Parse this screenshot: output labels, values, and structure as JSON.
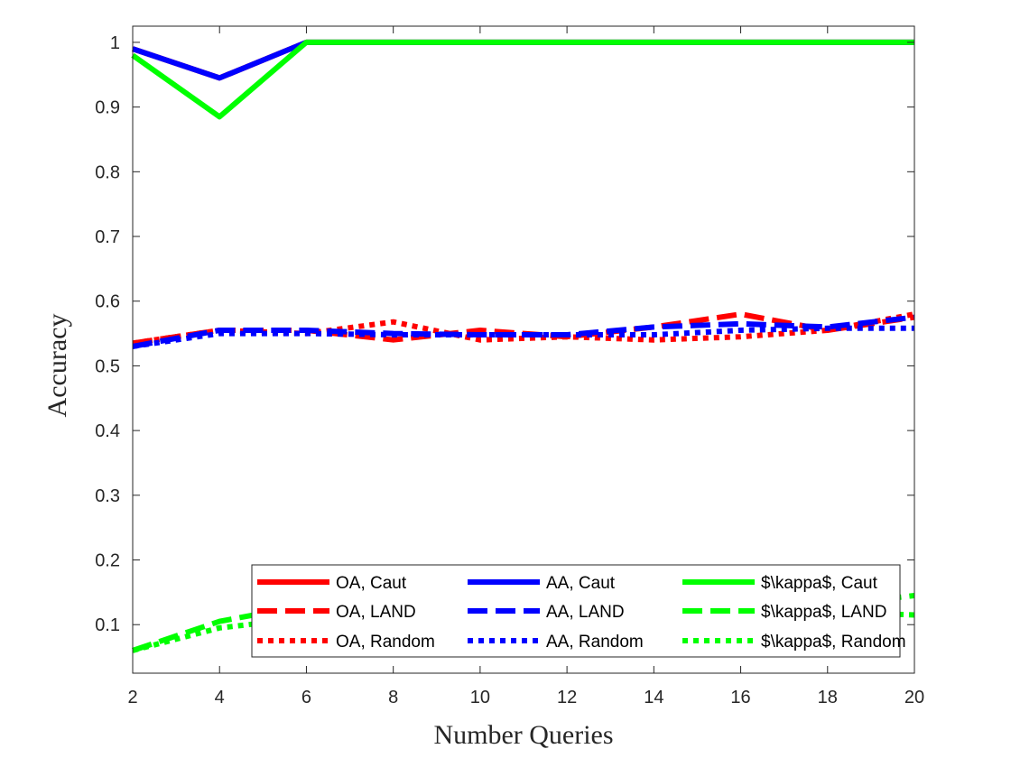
{
  "chart_data": {
    "type": "line",
    "title": "",
    "xlabel": "Number Queries",
    "ylabel": "Accuracy",
    "xlim": [
      2,
      20
    ],
    "ylim": [
      0.025,
      1.025
    ],
    "xticks": [
      2,
      4,
      6,
      8,
      10,
      12,
      14,
      16,
      18,
      20
    ],
    "yticks": [
      0.1,
      0.2,
      0.3,
      0.4,
      0.5,
      0.6,
      0.7,
      0.8,
      0.9,
      1
    ],
    "grid": false,
    "legend_position": "bottom-right",
    "legend_columns": 3,
    "x": [
      2,
      4,
      6,
      8,
      10,
      12,
      14,
      16,
      18,
      20
    ],
    "series": [
      {
        "name": "OA, Caut",
        "color": "#ff0000",
        "style": "solid",
        "values": [
          0.99,
          0.945,
          1,
          1,
          1,
          1,
          1,
          1,
          1,
          1
        ]
      },
      {
        "name": "OA, LAND",
        "color": "#ff0000",
        "style": "dashed",
        "values": [
          0.535,
          0.555,
          0.555,
          0.54,
          0.555,
          0.545,
          0.56,
          0.58,
          0.555,
          0.575
        ]
      },
      {
        "name": "OA, Random",
        "color": "#ff0000",
        "style": "dotted",
        "values": [
          0.535,
          0.555,
          0.55,
          0.568,
          0.54,
          0.545,
          0.54,
          0.545,
          0.555,
          0.58
        ]
      },
      {
        "name": "AA, Caut",
        "color": "#0000ff",
        "style": "solid",
        "values": [
          0.99,
          0.945,
          1,
          1,
          1,
          1,
          1,
          1,
          1,
          1
        ]
      },
      {
        "name": "AA, LAND",
        "color": "#0000ff",
        "style": "dashed",
        "values": [
          0.53,
          0.555,
          0.555,
          0.55,
          0.548,
          0.548,
          0.56,
          0.565,
          0.56,
          0.575
        ]
      },
      {
        "name": "AA, Random",
        "color": "#0000ff",
        "style": "dotted",
        "values": [
          0.53,
          0.55,
          0.55,
          0.548,
          0.548,
          0.548,
          0.548,
          0.555,
          0.558,
          0.558
        ]
      },
      {
        "name": "$\\kappa$, Caut",
        "color": "#00ff00",
        "style": "solid",
        "values": [
          0.98,
          0.885,
          1,
          1,
          1,
          1,
          1,
          1,
          1,
          1
        ]
      },
      {
        "name": "$\\kappa$, LAND",
        "color": "#00ff00",
        "style": "dashed",
        "values": [
          0.06,
          0.105,
          0.13,
          0.125,
          0.125,
          0.125,
          0.13,
          0.13,
          0.13,
          0.145
        ]
      },
      {
        "name": "$\\kappa$, Random",
        "color": "#00ff00",
        "style": "dotted",
        "values": [
          0.06,
          0.095,
          0.11,
          0.115,
          0.115,
          0.115,
          0.115,
          0.115,
          0.12,
          0.115
        ]
      }
    ]
  }
}
